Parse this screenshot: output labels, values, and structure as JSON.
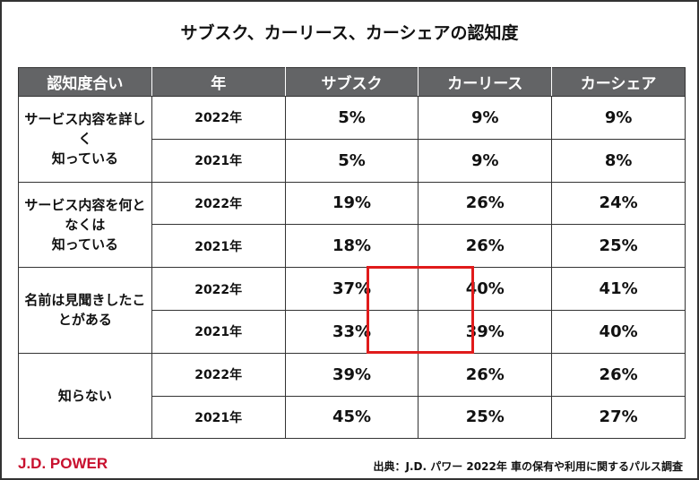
{
  "title": "サブスク、カーリース、カーシェアの認知度",
  "headers": [
    "認知度合い",
    "年",
    "サブスク",
    "カーリース",
    "カーシェア"
  ],
  "groups": [
    {
      "label_lines": [
        "サービス内容を詳しく",
        "知っている"
      ],
      "rows": [
        {
          "year": "2022年",
          "values": [
            "5%",
            "9%",
            "9%"
          ]
        },
        {
          "year": "2021年",
          "values": [
            "5%",
            "9%",
            "8%"
          ]
        }
      ]
    },
    {
      "label_lines": [
        "サービス内容を何となくは",
        "知っている"
      ],
      "rows": [
        {
          "year": "2022年",
          "values": [
            "19%",
            "26%",
            "24%"
          ]
        },
        {
          "year": "2021年",
          "values": [
            "18%",
            "26%",
            "25%"
          ]
        }
      ]
    },
    {
      "label_lines": [
        "名前は見聞きしたことがある"
      ],
      "rows": [
        {
          "year": "2022年",
          "values": [
            "37%",
            "40%",
            "41%"
          ]
        },
        {
          "year": "2021年",
          "values": [
            "33%",
            "39%",
            "40%"
          ]
        }
      ]
    },
    {
      "label_lines": [
        "知らない"
      ],
      "rows": [
        {
          "year": "2022年",
          "values": [
            "39%",
            "26%",
            "26%"
          ]
        },
        {
          "year": "2021年",
          "values": [
            "45%",
            "25%",
            "27%"
          ]
        }
      ]
    }
  ],
  "highlight_color": "#e01b1b",
  "logo": "J.D. POWER",
  "source": "出典：J.D. パワー 2022年 車の保有や利用に関するパルス調査"
}
